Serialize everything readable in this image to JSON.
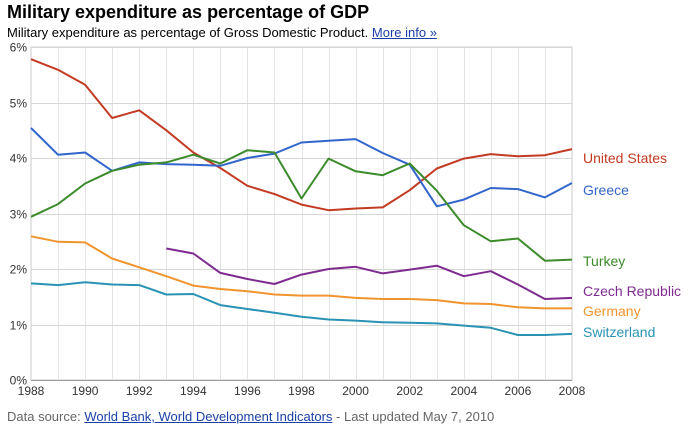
{
  "header": {
    "title": "Military expenditure as percentage of GDP",
    "subtitle": "Military expenditure as percentage of Gross Domestic Product.",
    "more_info": "More info »"
  },
  "footer": {
    "source_prefix": "Data source: ",
    "source_link": "World Bank, World Development Indicators",
    "source_suffix": " - Last updated May 7, 2010"
  },
  "chart_data": {
    "type": "line",
    "title": "Military expenditure as percentage of GDP",
    "xlabel": "",
    "ylabel": "",
    "xlim": [
      1988,
      2008
    ],
    "ylim": [
      0,
      6
    ],
    "grid": true,
    "legend": "right, labels at line ends",
    "x_ticks": [
      "1988",
      "1990",
      "1992",
      "1994",
      "1996",
      "1998",
      "2000",
      "2002",
      "2004",
      "2006",
      "2008"
    ],
    "y_ticks": [
      "0%",
      "1%",
      "2%",
      "3%",
      "4%",
      "5%",
      "6%"
    ],
    "x": [
      1988,
      1989,
      1990,
      1991,
      1992,
      1993,
      1994,
      1995,
      1996,
      1997,
      1998,
      1999,
      2000,
      2001,
      2002,
      2003,
      2004,
      2005,
      2006,
      2007,
      2008
    ],
    "series": [
      {
        "name": "United States",
        "color": "#c23b22",
        "values": [
          5.78,
          5.59,
          5.32,
          4.72,
          4.86,
          4.5,
          4.1,
          3.82,
          3.5,
          3.35,
          3.16,
          3.06,
          3.09,
          3.11,
          3.42,
          3.81,
          3.99,
          4.07,
          4.03,
          4.05,
          4.16
        ]
      },
      {
        "name": "Greece",
        "color": "#3366cc",
        "values": [
          4.54,
          4.06,
          4.1,
          3.77,
          3.92,
          3.89,
          3.88,
          3.86,
          4.0,
          4.08,
          4.28,
          4.31,
          4.34,
          4.09,
          3.88,
          3.13,
          3.25,
          3.46,
          3.44,
          3.29,
          3.55
        ]
      },
      {
        "name": "Turkey",
        "color": "#3c8b2b",
        "values": [
          2.94,
          3.17,
          3.54,
          3.77,
          3.88,
          3.92,
          4.06,
          3.9,
          4.14,
          4.1,
          3.27,
          3.99,
          3.76,
          3.69,
          3.9,
          3.41,
          2.79,
          2.5,
          2.55,
          2.15,
          2.17
        ]
      },
      {
        "name": "Czech Republic",
        "color": "#7e2b8f",
        "values": [
          null,
          null,
          null,
          null,
          null,
          2.37,
          2.28,
          1.93,
          1.82,
          1.73,
          1.9,
          2.0,
          2.04,
          1.92,
          1.99,
          2.06,
          1.87,
          1.96,
          1.72,
          1.46,
          1.48
        ]
      },
      {
        "name": "Germany",
        "color": "#f0952e",
        "values": [
          2.59,
          2.49,
          2.48,
          2.19,
          2.03,
          1.87,
          1.7,
          1.64,
          1.6,
          1.54,
          1.52,
          1.52,
          1.48,
          1.46,
          1.46,
          1.44,
          1.38,
          1.37,
          1.31,
          1.29,
          1.29
        ]
      },
      {
        "name": "Switzerland",
        "color": "#2a93b3",
        "values": [
          1.74,
          1.71,
          1.76,
          1.72,
          1.71,
          1.54,
          1.55,
          1.35,
          1.28,
          1.21,
          1.14,
          1.09,
          1.07,
          1.04,
          1.03,
          1.02,
          0.98,
          0.94,
          0.81,
          0.81,
          0.83
        ]
      }
    ]
  }
}
